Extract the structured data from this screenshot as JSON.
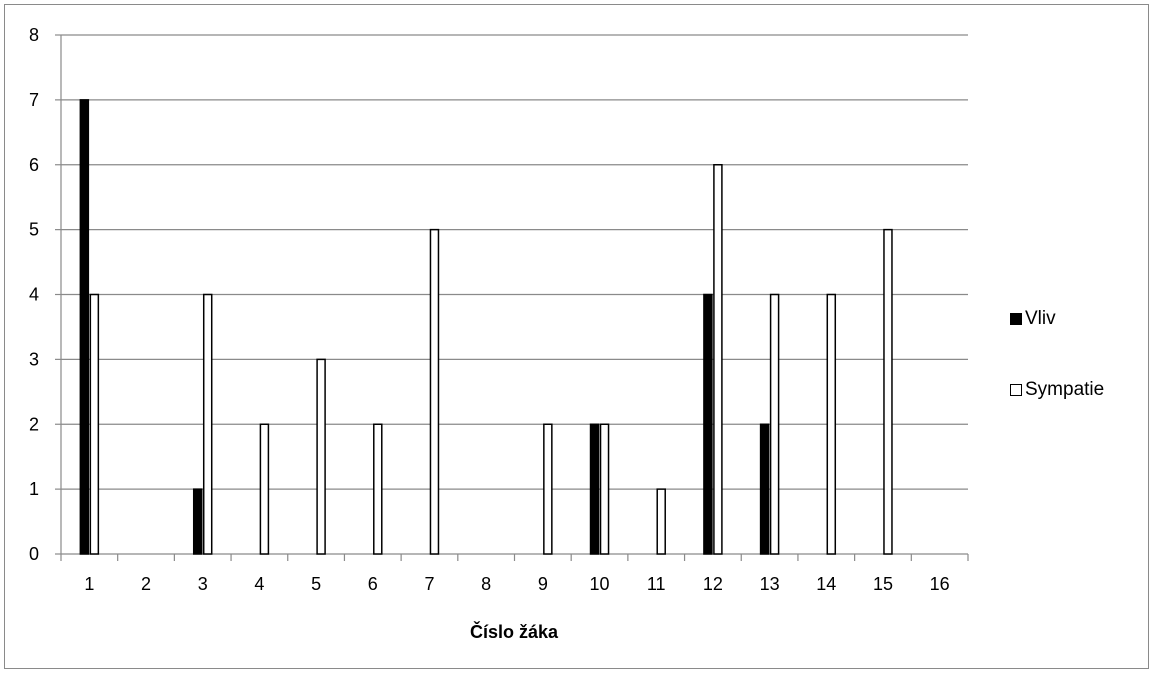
{
  "chart_data": {
    "type": "bar",
    "title": "",
    "xlabel": "Číslo žáka",
    "ylabel": "",
    "ylim": [
      0,
      8
    ],
    "yticks": [
      "0",
      "1",
      "2",
      "3",
      "4",
      "5",
      "6",
      "7",
      "8"
    ],
    "categories": [
      "1",
      "2",
      "3",
      "4",
      "5",
      "6",
      "7",
      "8",
      "9",
      "10",
      "11",
      "12",
      "13",
      "14",
      "15",
      "16"
    ],
    "series": [
      {
        "name": "Vliv",
        "color": "#000000",
        "fill": "#000000",
        "values": [
          7,
          0,
          1,
          0,
          0,
          0,
          0,
          0,
          0,
          2,
          0,
          4,
          2,
          0,
          0,
          0
        ]
      },
      {
        "name": "Sympatie",
        "color": "#000000",
        "fill": "#ffffff",
        "values": [
          4,
          0,
          4,
          2,
          3,
          2,
          5,
          0,
          2,
          2,
          1,
          6,
          4,
          4,
          5,
          0
        ]
      }
    ],
    "grid": true,
    "legend_position": "right"
  }
}
